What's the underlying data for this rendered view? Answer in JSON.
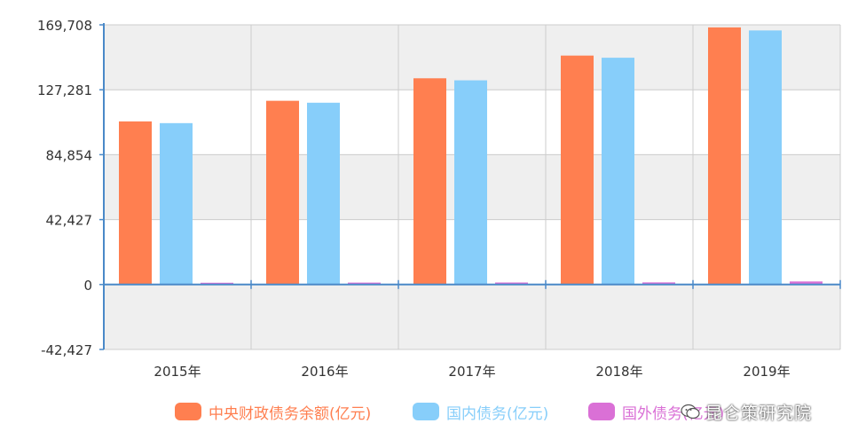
{
  "chart_data": {
    "type": "bar",
    "categories": [
      "2015年",
      "2016年",
      "2017年",
      "2018年",
      "2019年"
    ],
    "series": [
      {
        "name": "中央财政债务余额(亿元)",
        "values": [
          106600,
          120067,
          134770,
          149607,
          168038
        ],
        "color": "#ff7f50"
      },
      {
        "name": "国内债务(亿元)",
        "values": [
          105467,
          118811,
          133447,
          148208,
          166032
        ],
        "color": "#87cefa"
      },
      {
        "name": "国外债务(亿元)",
        "values": [
          1133,
          1256,
          1323,
          1399,
          2006
        ],
        "color": "#da70d6"
      }
    ],
    "yticks": [
      "169,708",
      "127,281",
      "84,854",
      "42,427",
      "0",
      "-42,427"
    ],
    "ylim": [
      -42427,
      169708
    ],
    "legend_position": "bottom"
  },
  "watermark": {
    "text": "昆仑策研究院"
  }
}
